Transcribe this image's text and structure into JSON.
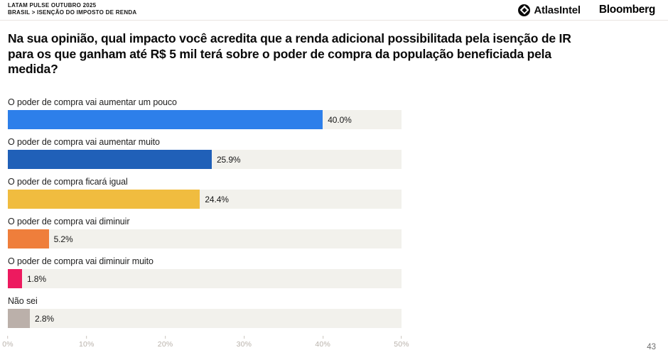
{
  "header": {
    "kicker_line1": "LATAM PULSE OUTUBRO 2025",
    "kicker_line2": "BRASIL > ISENÇÃO DO IMPOSTO DE RENDA",
    "brand_atlas": "AtlasIntel",
    "brand_bloomberg": "Bloomberg"
  },
  "title": {
    "full": "Na sua opinião, qual impacto você acredita que a renda adicional possibilitada pela isenção de IR para os que ganham até R$ 5 mil terá sobre o poder de compra da população beneficiada pela medida?",
    "lines": [
      "Na sua opinião, qual impacto você acredita que a renda adicional possibilitada pela isenção de IR",
      "para os que ganham até R$ 5 mil terá sobre o poder de compra da população beneficiada pela",
      "medida?"
    ]
  },
  "chart_data": {
    "type": "bar",
    "orientation": "horizontal",
    "title": "Na sua opinião, qual impacto você acredita que a renda adicional possibilitada pela isenção de IR para os que ganham até R$ 5 mil terá sobre o poder de compra da população beneficiada pela medida?",
    "categories": [
      "O poder de compra vai aumentar um pouco",
      "O poder de compra vai aumentar muito",
      "O poder de compra ficará igual",
      "O poder de compra vai diminuir",
      "O poder de compra vai diminuir muito",
      "Não sei"
    ],
    "values": [
      40.0,
      25.9,
      24.4,
      5.2,
      1.8,
      2.8
    ],
    "value_labels": [
      "40.0%",
      "25.9%",
      "24.4%",
      "5.2%",
      "1.8%",
      "2.8%"
    ],
    "colors": [
      "#2d7fea",
      "#2060b8",
      "#f0bc3f",
      "#ef7e3b",
      "#ed1a5f",
      "#bbb0aa"
    ],
    "track_color": "#f2f1ec",
    "xlabel": "",
    "ylabel": "",
    "xlim": [
      0,
      50
    ],
    "xmax": 50,
    "axis_ticks": [
      "0%",
      "10%",
      "20%",
      "30%",
      "40%",
      "50%"
    ],
    "grid": false,
    "legend": false
  },
  "footer": {
    "page_number": "43"
  }
}
